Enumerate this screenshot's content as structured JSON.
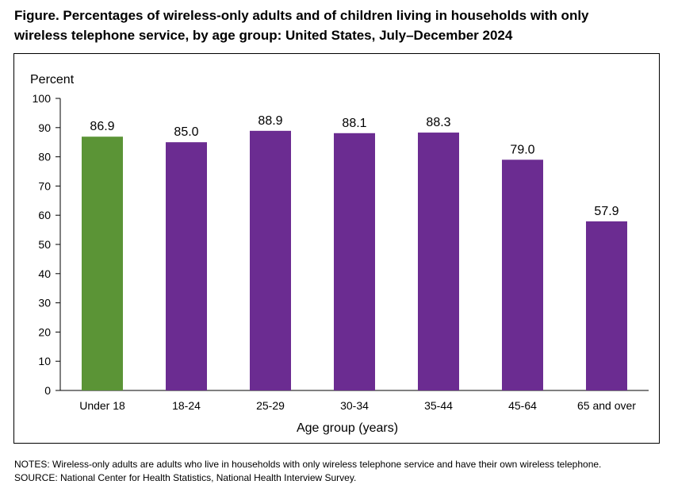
{
  "figure": {
    "title_line1": "Figure. Percentages of wireless-only adults and of children living in households with only",
    "title_line2": "wireless telephone service, by age group: United States, July–December 2024"
  },
  "chart_data": {
    "type": "bar",
    "categories": [
      "Under 18",
      "18-24",
      "25-29",
      "30-34",
      "35-44",
      "45-64",
      "65 and over"
    ],
    "values": [
      86.9,
      85.0,
      88.9,
      88.1,
      88.3,
      79.0,
      57.9
    ],
    "data_labels": [
      "86.9",
      "85.0",
      "88.9",
      "88.1",
      "88.3",
      "79.0",
      "57.9"
    ],
    "bar_colors": [
      "#5b9436",
      "#6b2c91",
      "#6b2c91",
      "#6b2c91",
      "#6b2c91",
      "#6b2c91",
      "#6b2c91"
    ],
    "title": "",
    "ylabel": "Percent",
    "xlabel": "Age group (years)",
    "ylim": [
      0,
      100
    ],
    "yticks": [
      0,
      10,
      20,
      30,
      40,
      50,
      60,
      70,
      80,
      90,
      100
    ],
    "grid": false,
    "legend": "none"
  },
  "notes": {
    "notes_line": "NOTES: Wireless-only adults are adults who live in households with only wireless telephone service and have their own wireless telephone.",
    "source_line": "SOURCE:  National Center for Health Statistics, National Health Interview Survey."
  }
}
